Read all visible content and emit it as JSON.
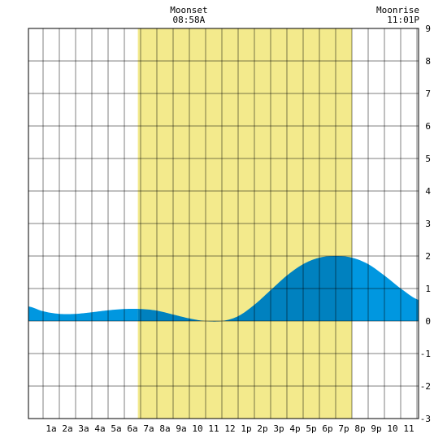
{
  "chart_data": {
    "type": "area",
    "title": "",
    "xlabel": "",
    "ylabel": "",
    "x_categories": [
      "1a",
      "2a",
      "3a",
      "4a",
      "5a",
      "6a",
      "7a",
      "8a",
      "9a",
      "10",
      "11",
      "12",
      "1p",
      "2p",
      "3p",
      "4p",
      "5p",
      "6p",
      "7p",
      "8p",
      "9p",
      "10",
      "11"
    ],
    "x_range_hours": [
      -0.9,
      23.1
    ],
    "y_range": [
      -3,
      9
    ],
    "y_ticks": [
      -3,
      -2,
      -1,
      0,
      1,
      2,
      3,
      4,
      5,
      6,
      7,
      8,
      9
    ],
    "grid": true,
    "daylight": {
      "start_hour": 5.83,
      "end_hour": 19.0
    },
    "series": [
      {
        "x": [
          -0.9,
          0,
          1,
          2,
          3,
          4,
          5,
          6,
          7,
          8,
          9,
          10,
          11,
          12,
          13,
          14,
          15,
          16,
          17,
          18,
          19,
          20,
          21,
          22,
          23.1
        ],
        "y": [
          0.45,
          0.3,
          0.22,
          0.22,
          0.27,
          0.33,
          0.37,
          0.37,
          0.32,
          0.2,
          0.08,
          0.0,
          0.0,
          0.15,
          0.5,
          0.95,
          1.4,
          1.75,
          1.95,
          2.0,
          1.95,
          1.75,
          1.4,
          1.0,
          0.65
        ]
      }
    ],
    "annotations": [
      {
        "label": "Moonset",
        "time": "08:58A",
        "hour": 8.97
      },
      {
        "label": "Moonrise",
        "time": "11:01P",
        "hour": 23.02
      }
    ]
  },
  "colors": {
    "daylight": "#f3ea8c",
    "tide_night": "#0097e0",
    "tide_day": "#0081bf",
    "grid": "#000000"
  }
}
